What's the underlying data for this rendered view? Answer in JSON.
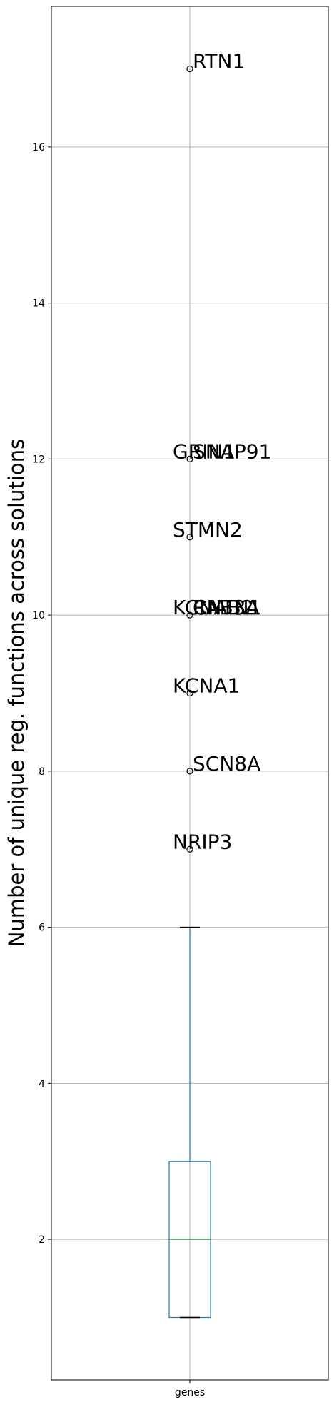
{
  "chart_data": {
    "type": "box",
    "categories": [
      "genes"
    ],
    "ylabel": "Number of unique reg. functions across solutions",
    "xlabel": "",
    "ylim": [
      0.2,
      17.8
    ],
    "yticks": [
      2,
      4,
      6,
      8,
      10,
      12,
      14,
      16
    ],
    "grid": true,
    "box": {
      "whisker_low": 1,
      "q1": 1,
      "median": 2,
      "q3": 3,
      "whisker_high": 6
    },
    "outliers": [
      {
        "label": "RTN1",
        "value": 17,
        "label_side": "right"
      },
      {
        "label": "GRIN1",
        "value": 12,
        "label_side": "left"
      },
      {
        "label": "SNAP91",
        "value": 12,
        "label_side": "right"
      },
      {
        "label": "STMN2",
        "value": 11,
        "label_side": "left"
      },
      {
        "label": "KCNAB2",
        "value": 10,
        "label_side": "left"
      },
      {
        "label": "CNTN1",
        "value": 10,
        "label_side": "right"
      },
      {
        "label": "RAB3A",
        "value": 10,
        "label_side": "right"
      },
      {
        "label": "KCNA1",
        "value": 9,
        "label_side": "left"
      },
      {
        "label": "SCN8A",
        "value": 8,
        "label_side": "right"
      },
      {
        "label": "NRIP3",
        "value": 7,
        "label_side": "left"
      }
    ],
    "colors": {
      "box": "#1f77b4",
      "median": "#2ca02c",
      "cap": "#000000",
      "grid": "#b0b0b0",
      "outlier": "#000000"
    }
  }
}
